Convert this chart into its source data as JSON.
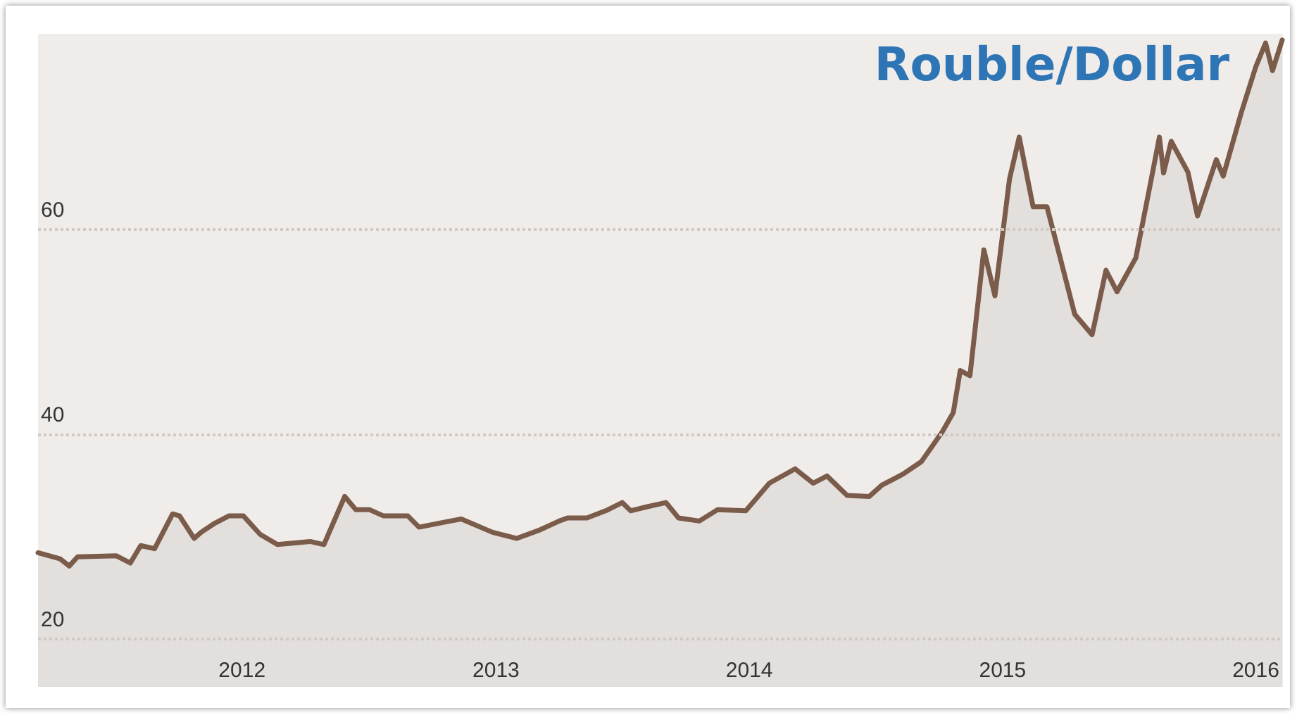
{
  "chart_data": {
    "type": "area",
    "title": "Rouble/Dollar",
    "x": [
      "2011-03-13",
      "2011-04-14",
      "2011-04-27",
      "2011-05-09",
      "2011-07-04",
      "2011-07-24",
      "2011-08-08",
      "2011-08-28",
      "2011-09-23",
      "2011-10-03",
      "2011-10-24",
      "2011-11-03",
      "2011-11-23",
      "2011-12-13",
      "2012-01-03",
      "2012-01-27",
      "2012-02-21",
      "2012-04-08",
      "2012-04-28",
      "2012-05-28",
      "2012-06-13",
      "2012-07-03",
      "2012-07-23",
      "2012-08-27",
      "2012-09-12",
      "2012-10-27",
      "2012-11-12",
      "2012-12-27",
      "2013-01-31",
      "2013-03-04",
      "2013-04-02",
      "2013-04-14",
      "2013-05-12",
      "2013-06-08",
      "2013-07-02",
      "2013-07-14",
      "2013-08-07",
      "2013-09-03",
      "2013-09-21",
      "2013-10-21",
      "2013-11-16",
      "2013-12-27",
      "2014-01-30",
      "2014-03-08",
      "2014-04-03",
      "2014-04-23",
      "2014-05-22",
      "2014-06-23",
      "2014-07-11",
      "2014-08-11",
      "2014-09-06",
      "2014-10-06",
      "2014-10-22",
      "2014-11-01",
      "2014-11-15",
      "2014-12-05",
      "2014-12-21",
      "2015-01-11",
      "2015-01-25",
      "2015-02-14",
      "2015-03-06",
      "2015-03-22",
      "2015-04-15",
      "2015-05-10",
      "2015-05-30",
      "2015-06-15",
      "2015-07-12",
      "2015-08-01",
      "2015-08-15",
      "2015-08-21",
      "2015-09-01",
      "2015-09-25",
      "2015-10-09",
      "2015-11-05",
      "2015-11-15",
      "2015-12-11",
      "2016-01-01",
      "2016-01-15",
      "2016-01-25",
      "2016-02-08"
    ],
    "series": [
      {
        "color": "#7b5b4a",
        "values": [
          28.4,
          27.8,
          27.1,
          28.0,
          28.1,
          27.4,
          29.1,
          28.8,
          32.2,
          32.0,
          29.8,
          30.4,
          31.3,
          32.0,
          32.0,
          30.2,
          29.2,
          29.5,
          29.2,
          33.9,
          32.6,
          32.6,
          32.0,
          32.0,
          30.9,
          31.5,
          31.7,
          30.4,
          29.8,
          30.6,
          31.5,
          31.8,
          31.8,
          32.5,
          33.3,
          32.5,
          32.9,
          33.3,
          31.8,
          31.5,
          32.6,
          32.5,
          35.2,
          36.6,
          35.2,
          35.9,
          34.0,
          33.9,
          35.0,
          36.1,
          37.3,
          40.2,
          42.1,
          46.2,
          45.7,
          58.0,
          53.5,
          64.9,
          69.0,
          62.2,
          62.2,
          58.0,
          51.7,
          49.7,
          56.0,
          53.9,
          57.2,
          64.1,
          69.0,
          65.5,
          68.6,
          65.6,
          61.3,
          66.8,
          65.2,
          71.4,
          75.9,
          78.2,
          75.5,
          78.5
        ]
      }
    ],
    "xlim": [
      "2011-03-13",
      "2016-02-09"
    ],
    "xticks": [
      {
        "value": "2012-01-01",
        "label": "2012"
      },
      {
        "value": "2013-01-01",
        "label": "2013"
      },
      {
        "value": "2014-01-01",
        "label": "2014"
      },
      {
        "value": "2015-01-01",
        "label": "2015"
      },
      {
        "value": "2016-01-01",
        "label": "2016"
      }
    ],
    "ylim": [
      15.3,
      79.1
    ],
    "yticks": [
      20,
      40,
      60
    ],
    "grid": "y",
    "line_style": "solid",
    "marker": "none"
  }
}
